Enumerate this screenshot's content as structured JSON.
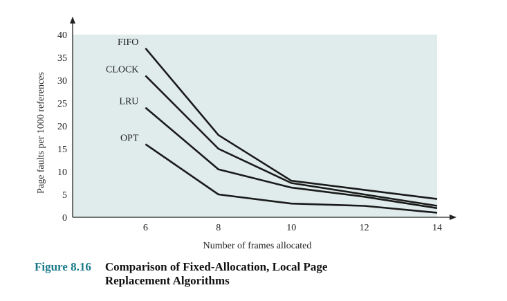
{
  "chart_data": {
    "type": "line",
    "xlabel": "Number of frames allocated",
    "ylabel": "Page faults per 1000 references",
    "x_ticks": [
      6,
      8,
      10,
      12,
      14
    ],
    "y_ticks": [
      0,
      5,
      10,
      15,
      20,
      25,
      30,
      35,
      40
    ],
    "xlim": [
      4,
      14
    ],
    "ylim": [
      0,
      40
    ],
    "grid": false,
    "legend": "inline labels at left end of each line",
    "background_color": "#dfeceb",
    "line_color": "#1a1a1a",
    "series": [
      {
        "name": "FIFO",
        "x": [
          6,
          8,
          10,
          12,
          14
        ],
        "y": [
          37,
          18,
          8,
          6,
          4
        ]
      },
      {
        "name": "CLOCK",
        "x": [
          6,
          8,
          10,
          12,
          14
        ],
        "y": [
          31,
          15,
          7.5,
          5,
          2.5
        ]
      },
      {
        "name": "LRU",
        "x": [
          6,
          8,
          10,
          12,
          14
        ],
        "y": [
          24,
          10.5,
          6.5,
          4.5,
          2
        ]
      },
      {
        "name": "OPT",
        "x": [
          6,
          8,
          10,
          12,
          14
        ],
        "y": [
          16,
          5,
          3,
          2.5,
          1
        ]
      }
    ]
  },
  "caption": {
    "number": "Figure 8.16",
    "title": "Comparison of Fixed-Allocation, Local Page Replacement Algorithms"
  }
}
